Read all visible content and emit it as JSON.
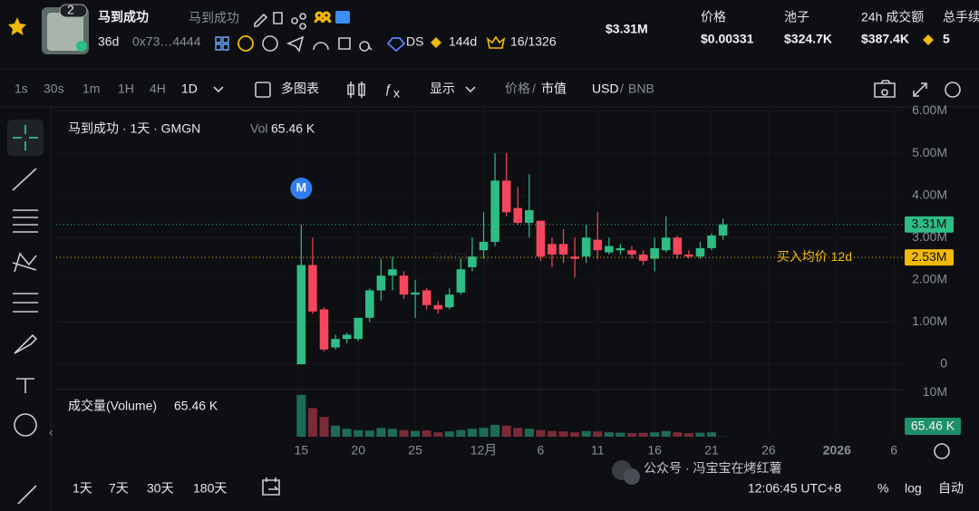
{
  "header": {
    "holders_badge": "2",
    "token_name": "马到成功",
    "token_name_alt": "马到成功",
    "age": "36d",
    "address": "0x73…4444",
    "ds": "DS",
    "days": "144d",
    "rank": "16/1326",
    "market_cap": "$3.31M",
    "stats": [
      {
        "label": "价格",
        "value": "$0.00331"
      },
      {
        "label": "池子",
        "value": "$324.7K"
      },
      {
        "label": "24h 成交额",
        "value": "$387.4K"
      },
      {
        "label": "总手续",
        "value": "5"
      }
    ]
  },
  "toolbar": {
    "intervals": [
      "1s",
      "30s",
      "1m",
      "1H",
      "4H",
      "1D"
    ],
    "multi": "多图表",
    "display": "显示",
    "price": "价格",
    "sep": "/",
    "mcap": "市值",
    "currency": "USD",
    "currency_alt": "BNB"
  },
  "chart_data": {
    "type": "candlestick",
    "title": "马到成功 · 1天 · GMGN",
    "volume_short": "Vol",
    "volume_title": "成交量(Volume)",
    "volume_value_label": "65.46 K",
    "watermark": "GMGN.AI",
    "up_color": "#2ebd85",
    "down_color": "#f6465d",
    "volume_up_color": "#1d6b57",
    "volume_down_color": "#7a2b38",
    "x": [
      0,
      1,
      2,
      3,
      4,
      5,
      6,
      7,
      8,
      9,
      10,
      11,
      12,
      13,
      14,
      15,
      16,
      17,
      18,
      19,
      20,
      21,
      22,
      23,
      24,
      25,
      26,
      27,
      28,
      29,
      30,
      31,
      32,
      33,
      34,
      35,
      36,
      37
    ],
    "open": [
      0,
      2350000,
      1300000,
      400000,
      600000,
      600000,
      1100000,
      1750000,
      2100000,
      2100000,
      1650000,
      1750000,
      1400000,
      1350000,
      1700000,
      2300000,
      2700000,
      2900000,
      4350000,
      3700000,
      3350000,
      3400000,
      2850000,
      2850000,
      2550000,
      2550000,
      2950000,
      2650000,
      2700000,
      2700000,
      2600000,
      2500000,
      2700000,
      3000000,
      2600000,
      2550000,
      2750000,
      3050000
    ],
    "high": [
      3300000,
      3000000,
      1350000,
      700000,
      750000,
      1100000,
      1800000,
      2500000,
      2550000,
      2200000,
      2000000,
      1800000,
      1500000,
      1800000,
      2500000,
      3000000,
      3600000,
      5000000,
      5000000,
      4200000,
      4500000,
      3400000,
      3000000,
      3200000,
      3000000,
      3300000,
      3600000,
      3000000,
      2850000,
      2800000,
      2700000,
      3000000,
      3500000,
      3050000,
      2700000,
      2900000,
      3100000,
      3450000
    ],
    "low": [
      0,
      1200000,
      300000,
      350000,
      500000,
      550000,
      1000000,
      1500000,
      1750000,
      1550000,
      1100000,
      1300000,
      1200000,
      1300000,
      1650000,
      2200000,
      2500000,
      2800000,
      3500000,
      3300000,
      3000000,
      2450000,
      2300000,
      2400000,
      2050000,
      2400000,
      2500000,
      2600000,
      2600000,
      2500000,
      2350000,
      2200000,
      2650000,
      2500000,
      2500000,
      2500000,
      2700000,
      2950000
    ],
    "close": [
      2350000,
      1250000,
      350000,
      600000,
      700000,
      1100000,
      1750000,
      2100000,
      2250000,
      1650000,
      1700000,
      1400000,
      1300000,
      1650000,
      2250000,
      2550000,
      2900000,
      4350000,
      3600000,
      3350000,
      3650000,
      2550000,
      2600000,
      2600000,
      2500000,
      3000000,
      2700000,
      2800000,
      2750000,
      2600000,
      2450000,
      2750000,
      3000000,
      2600000,
      2550000,
      2750000,
      3050000,
      3310000
    ],
    "volume": [
      9500000,
      6500000,
      4500000,
      2500000,
      1800000,
      1500000,
      1400000,
      2000000,
      1800000,
      1500000,
      1300000,
      1400000,
      1000000,
      1200000,
      1500000,
      1800000,
      2000000,
      2700000,
      2500000,
      2000000,
      1800000,
      1500000,
      1300000,
      1200000,
      1000000,
      1300000,
      1200000,
      1000000,
      900000,
      800000,
      900000,
      1000000,
      1300000,
      1000000,
      800000,
      900000,
      1000000,
      65460
    ],
    "xlim": [
      -21.5,
      52.7
    ],
    "ylim": [
      -600000,
      6160000
    ],
    "volume_ylim": [
      0,
      10700000
    ],
    "yticks": [
      0,
      {
        "value": 1000000,
        "label": "1.00M"
      },
      {
        "value": 2000000,
        "label": "2.00M"
      },
      {
        "value": 3000000,
        "label": "3.00M"
      },
      {
        "value": 4000000,
        "label": "4.00M"
      },
      {
        "value": 5000000,
        "label": "5.00M"
      },
      {
        "value": 6000000,
        "label": "6.00M"
      }
    ],
    "volume_ticks": [
      {
        "value": 10000000,
        "label": "10M"
      }
    ],
    "xticks": [
      {
        "value": 0,
        "label": "15"
      },
      {
        "value": 5,
        "label": "20"
      },
      {
        "value": 10,
        "label": "25"
      },
      {
        "value": 16,
        "label": "12月"
      },
      {
        "value": 21,
        "label": "6"
      },
      {
        "value": 26,
        "label": "11"
      },
      {
        "value": 31,
        "label": "16"
      },
      {
        "value": 36,
        "label": "21"
      },
      {
        "value": 41,
        "label": "26"
      },
      {
        "value": 47,
        "label": "2026"
      },
      {
        "value": 52,
        "label": "6"
      }
    ],
    "current_price": {
      "value": 3310000,
      "label": "3.31M"
    },
    "avg_price": {
      "value": 2530000,
      "label": "2.53M",
      "text": "买入均价 12d"
    },
    "marker": {
      "x": 0,
      "label": "M"
    },
    "grid": true
  },
  "bottom": {
    "ranges": [
      "1天",
      "7天",
      "30天",
      "180天"
    ],
    "time": "12:06:45 UTC+8",
    "pct": "%",
    "log": "log",
    "auto": "自动",
    "watermark": "公众号 · 冯宝宝在烤红薯"
  }
}
